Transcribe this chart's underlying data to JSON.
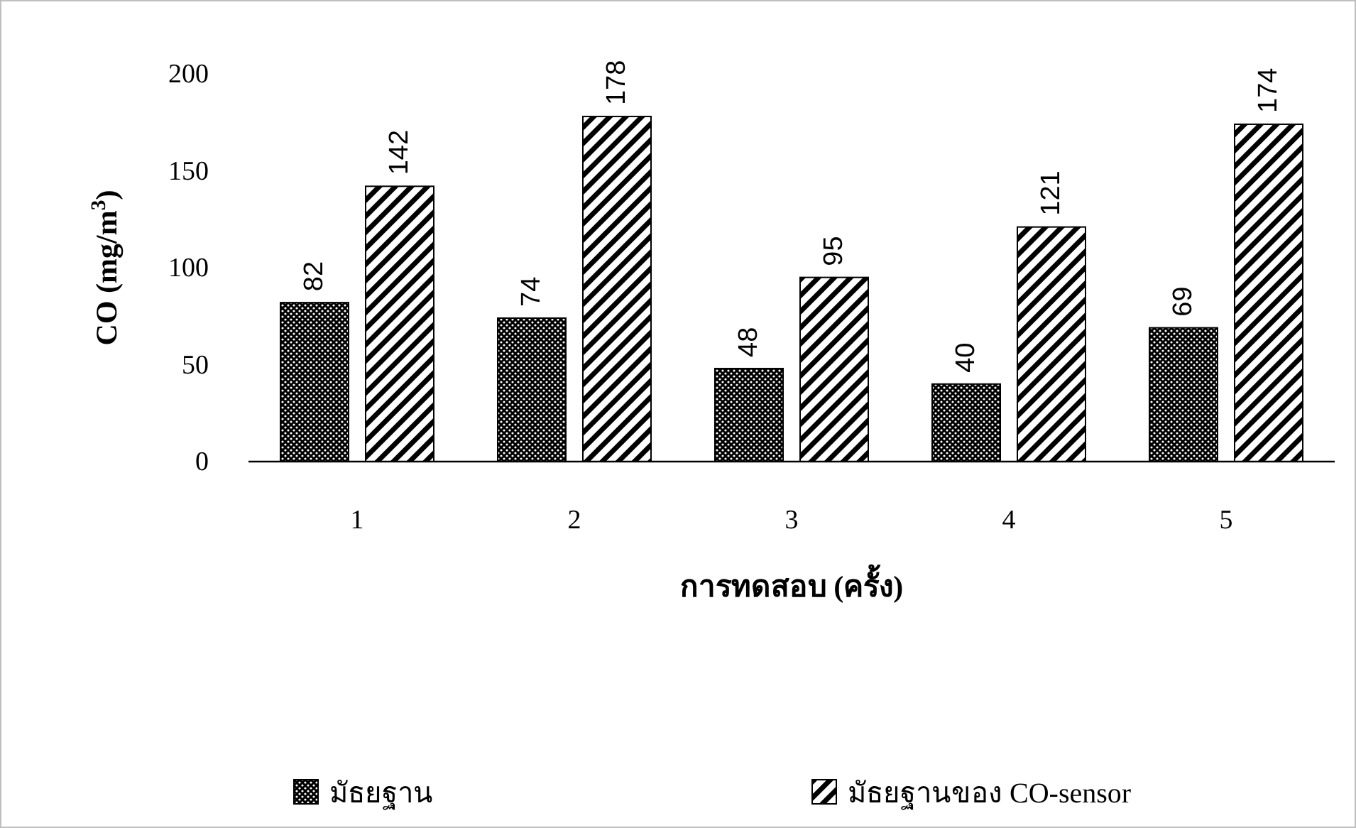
{
  "chart_data": {
    "type": "bar",
    "xlabel": "การทดสอบ (ครั้ง)",
    "ylabel": "CO (mg/m$^{3}$)",
    "categories": [
      "1",
      "2",
      "3",
      "4",
      "5"
    ],
    "series": [
      {
        "name": "มัธยฐาน",
        "color": "#000000",
        "values": [
          82,
          74,
          48,
          40,
          69
        ]
      },
      {
        "name": "มัธยฐานของ CO-sensor",
        "color": "#000000",
        "values": [
          142,
          178,
          95,
          121,
          174
        ]
      }
    ],
    "ylim": [
      0,
      200
    ],
    "yticks": [
      0,
      50,
      100,
      150,
      200
    ],
    "data_labels": true,
    "legend": "bottom",
    "grid": false
  }
}
